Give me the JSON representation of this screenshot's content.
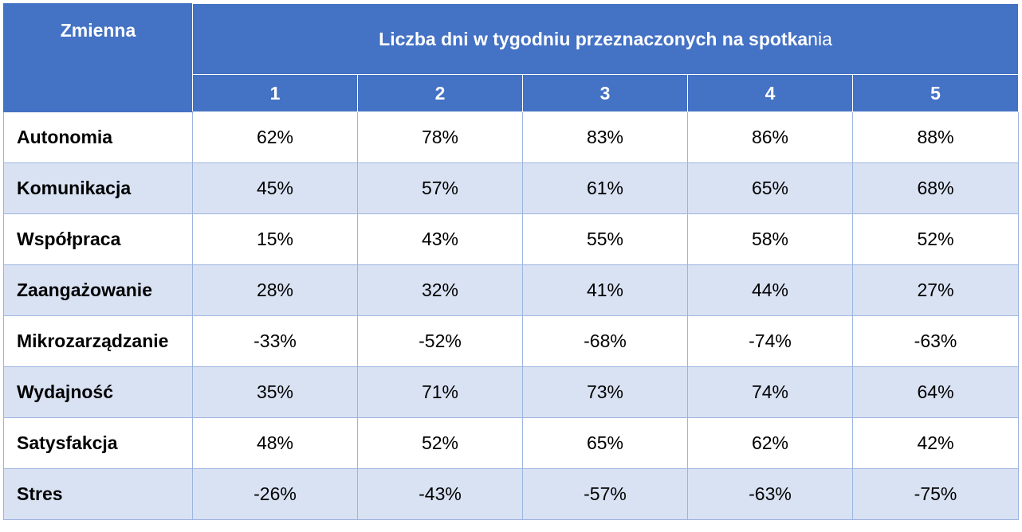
{
  "header": {
    "variable_label": "Zmienna",
    "group_title_bold": "Liczba dni w tygodniu przeznaczonych na spotka",
    "group_title_tail": "nia",
    "columns": [
      "1",
      "2",
      "3",
      "4",
      "5"
    ]
  },
  "rows": [
    {
      "label": "Autonomia",
      "values": [
        "62%",
        "78%",
        "83%",
        "86%",
        "88%"
      ]
    },
    {
      "label": "Komunikacja",
      "values": [
        "45%",
        "57%",
        "61%",
        "65%",
        "68%"
      ]
    },
    {
      "label": "Współpraca",
      "values": [
        "15%",
        "43%",
        "55%",
        "58%",
        "52%"
      ]
    },
    {
      "label": "Zaangażowanie",
      "values": [
        "28%",
        "32%",
        "41%",
        "44%",
        "27%"
      ]
    },
    {
      "label": "Mikrozarządzanie",
      "values": [
        "-33%",
        "-52%",
        "-68%",
        "-74%",
        "-63%"
      ]
    },
    {
      "label": "Wydajność",
      "values": [
        "35%",
        "71%",
        "73%",
        "74%",
        "64%"
      ]
    },
    {
      "label": "Satysfakcja",
      "values": [
        "48%",
        "52%",
        "65%",
        "62%",
        "42%"
      ]
    },
    {
      "label": "Stres",
      "values": [
        "-26%",
        "-43%",
        "-57%",
        "-63%",
        "-75%"
      ]
    }
  ],
  "colors": {
    "header_bg": "#4472c4",
    "band_bg": "#d9e2f3",
    "border": "#9db4e0"
  }
}
